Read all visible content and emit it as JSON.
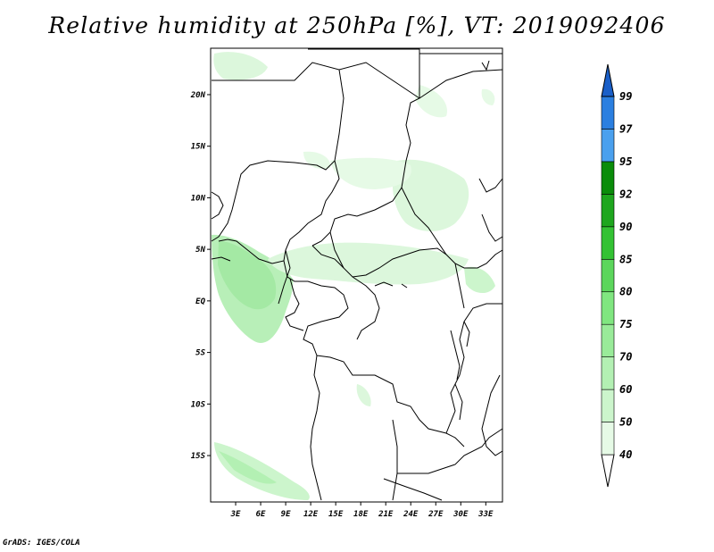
{
  "title": "Relative humidity at 250hPa [%], VT: 2019092406",
  "credit": "GrADS: IGES/COLA",
  "map": {
    "lon_range": [
      0,
      35
    ],
    "lat_range": [
      -19.5,
      24.5
    ],
    "lon_ticks": [
      "3E",
      "6E",
      "9E",
      "12E",
      "15E",
      "18E",
      "21E",
      "24E",
      "27E",
      "30E",
      "33E"
    ],
    "lat_ticks": [
      "20N",
      "15N",
      "10N",
      "5N",
      "EQ",
      "5S",
      "10S",
      "15S"
    ]
  },
  "legend": {
    "levels": [
      "40",
      "50",
      "60",
      "70",
      "75",
      "80",
      "85",
      "90",
      "92",
      "95",
      "97",
      "99"
    ],
    "colors": [
      "#ffffff",
      "#e6fae6",
      "#ccf5cc",
      "#b3f0b3",
      "#99eb99",
      "#80e680",
      "#5cd65c",
      "#33c233",
      "#1ea61e",
      "#0a8c0a",
      "#4aa0ee",
      "#2b7fe0",
      "#1a5fc8"
    ]
  }
}
